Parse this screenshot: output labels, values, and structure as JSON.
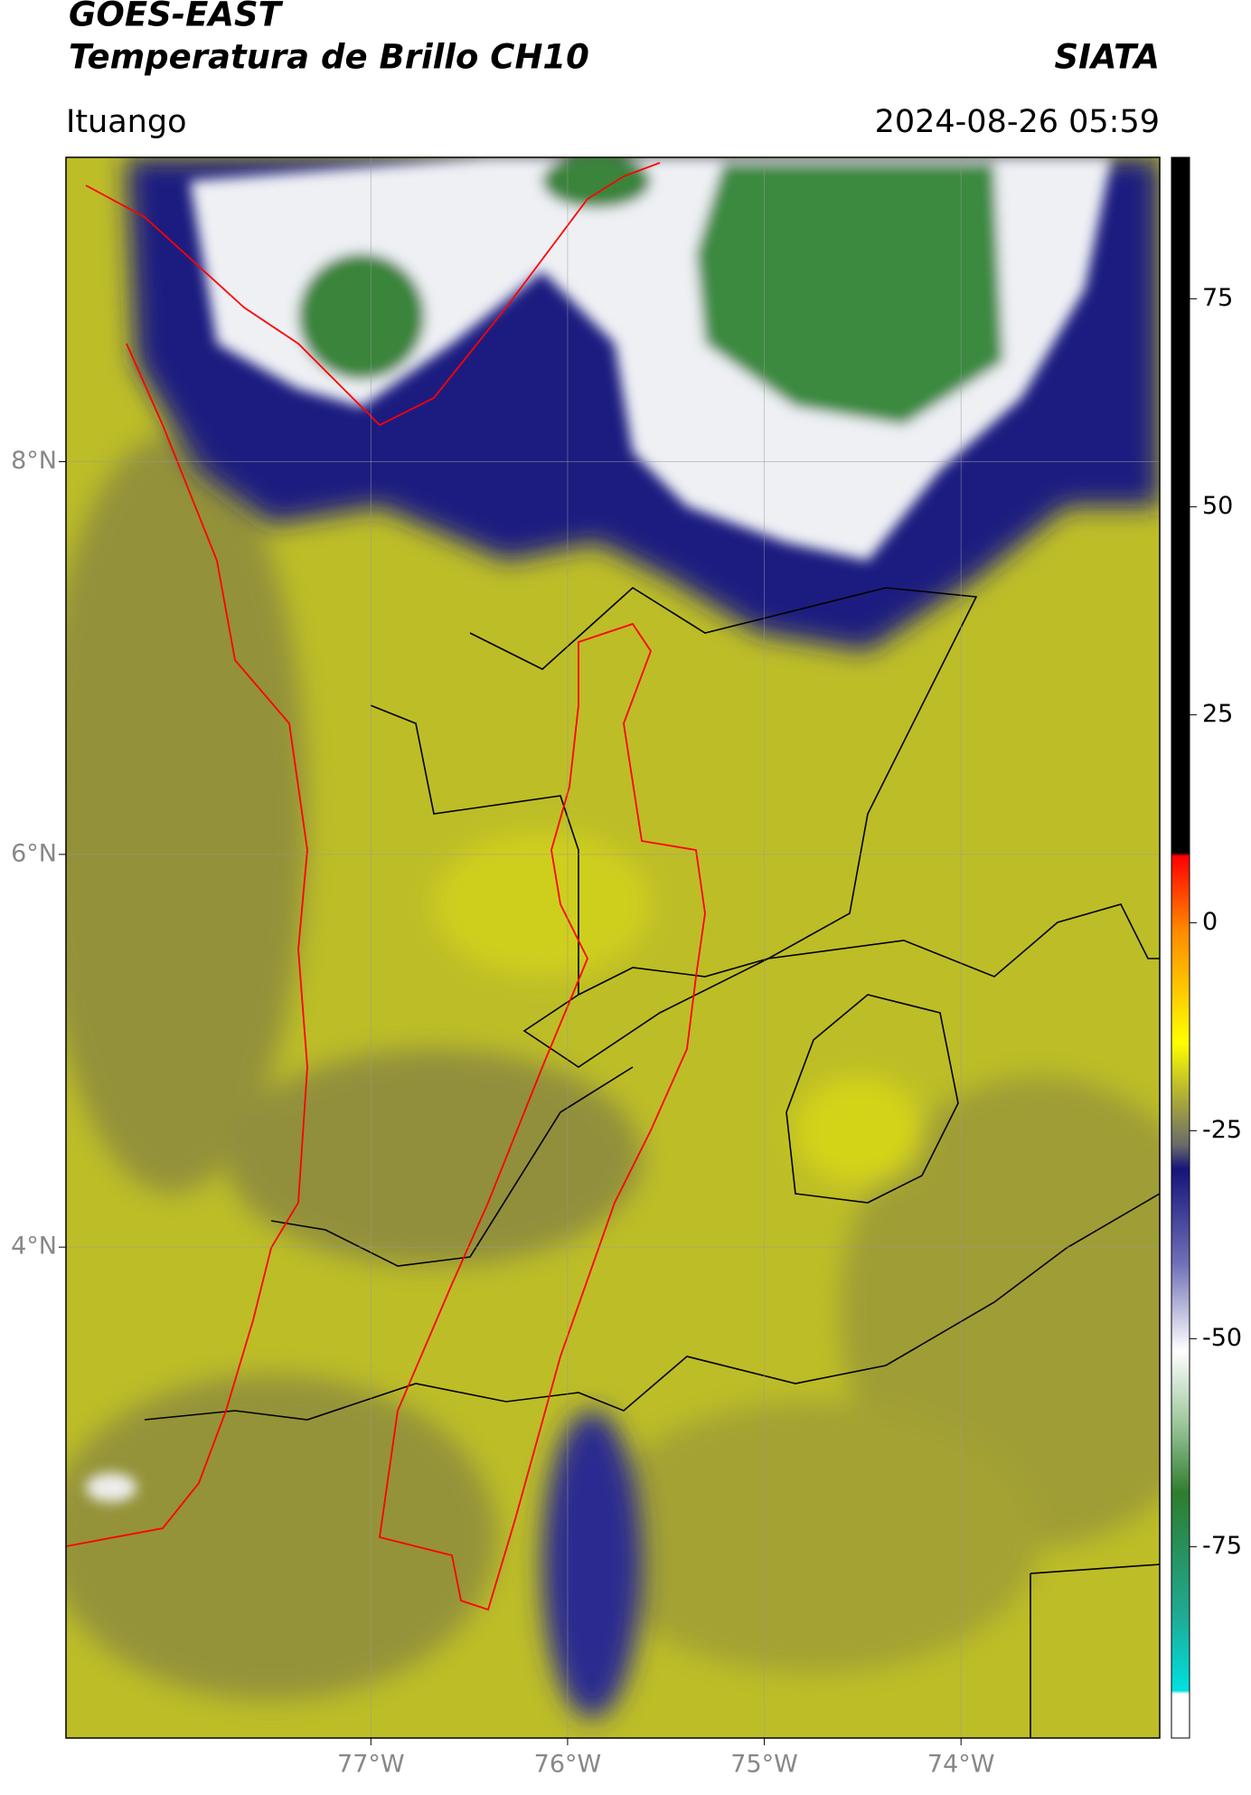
{
  "header": {
    "title": "GOES-EAST",
    "subtitle": "Temperatura de Brillo CH10",
    "source": "SIATA",
    "region": "Ituango",
    "datetime": "2024-08-26 05:59"
  },
  "map": {
    "xlim": [
      -78.55,
      -72.99
    ],
    "ylim": [
      1.5,
      9.55
    ],
    "xticks": [
      {
        "value": -77,
        "label": "77°W"
      },
      {
        "value": -76,
        "label": "76°W"
      },
      {
        "value": -75,
        "label": "75°W"
      },
      {
        "value": -74,
        "label": "74°W"
      }
    ],
    "yticks": [
      {
        "value": 8,
        "label": "8°N"
      },
      {
        "value": 6,
        "label": "6°N"
      },
      {
        "value": 4,
        "label": "4°N"
      }
    ],
    "grid": true
  },
  "colorbar": {
    "lim": [
      -98,
      92
    ],
    "ticks": [
      75,
      50,
      25,
      0,
      -25,
      -50,
      -75
    ]
  }
}
